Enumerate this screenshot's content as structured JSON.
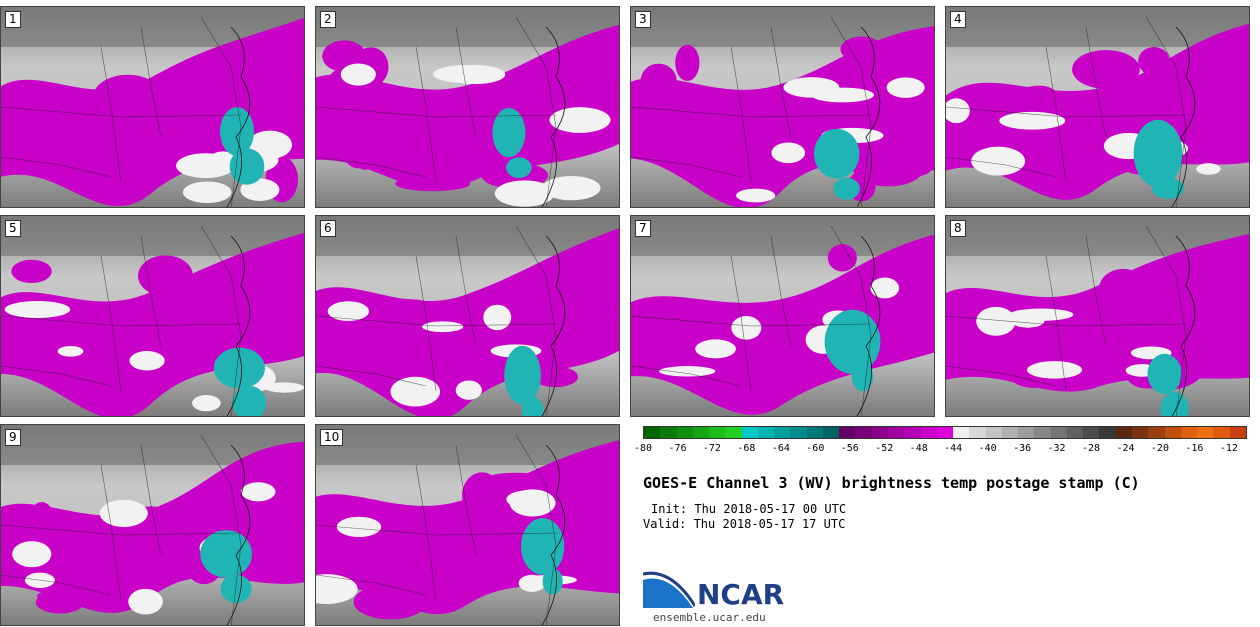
{
  "panels": [
    {
      "label": "1"
    },
    {
      "label": "2"
    },
    {
      "label": "3"
    },
    {
      "label": "4"
    },
    {
      "label": "5"
    },
    {
      "label": "6"
    },
    {
      "label": "7"
    },
    {
      "label": "8"
    },
    {
      "label": "9"
    },
    {
      "label": "10"
    }
  ],
  "colorbar": {
    "colors": [
      "#006400",
      "#0a7a0a",
      "#0f8f0f",
      "#15a515",
      "#1cbc1c",
      "#22d022",
      "#00c8c8",
      "#00b4b4",
      "#00a0a0",
      "#008c8c",
      "#007878",
      "#006464",
      "#640064",
      "#780078",
      "#8c008c",
      "#a000a0",
      "#b400b4",
      "#c800c8",
      "#dc00dc",
      "#f0f0f0",
      "#d8d8d8",
      "#c4c4c4",
      "#b0b0b0",
      "#9c9c9c",
      "#888888",
      "#747474",
      "#606060",
      "#4c4c4c",
      "#383838",
      "#5a2a10",
      "#7a3410",
      "#9a4010",
      "#c05010",
      "#e06010",
      "#f07010",
      "#e05a10",
      "#c84010"
    ],
    "tick_labels": [
      "-80",
      "-76",
      "-72",
      "-68",
      "-64",
      "-60",
      "-56",
      "-52",
      "-48",
      "-44",
      "-40",
      "-36",
      "-32",
      "-28",
      "-24",
      "-20",
      "-16",
      "-12"
    ]
  },
  "title": "GOES-E Channel 3 (WV) brightness temp postage stamp (C)",
  "init": "Init: Thu 2018-05-17 00 UTC",
  "valid": "Valid: Thu 2018-05-17 17 UTC",
  "logo": {
    "text": "NCAR",
    "url_text": "ensemble.ucar.edu",
    "brand_color": "#1f3f86",
    "accent": "#1a73c8"
  },
  "colors": {
    "moist": "#c800c8",
    "deep_convection": "#20b4b4",
    "dry_light": "#e0e0e0",
    "dry_dark": "#8a8a8a"
  }
}
